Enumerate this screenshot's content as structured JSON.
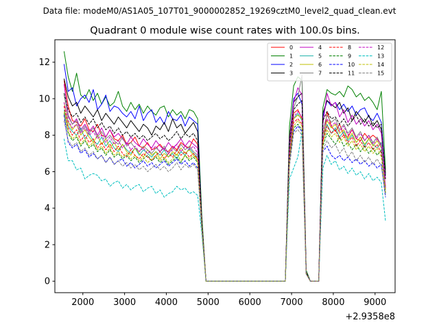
{
  "suptitle": "Data file: modeM0/AS1A05_107T01_9000002852_19269cztM0_level2_quad_clean.evt",
  "chart_data": {
    "type": "line",
    "title": "Quadrant 0 module wise count rates with 100.0s bins.",
    "xlabel": "",
    "ylabel": "",
    "x_offset_label": "+2.9358e8",
    "xlim": [
      1330,
      9480
    ],
    "ylim": [
      -0.63,
      13.23
    ],
    "x_ticks": [
      2000,
      3000,
      4000,
      5000,
      6000,
      7000,
      8000,
      9000
    ],
    "x_tick_labels": [
      "2000",
      "3000",
      "4000",
      "5000",
      "6000",
      "7000",
      "8000",
      "9000"
    ],
    "y_ticks": [
      0,
      2,
      4,
      6,
      8,
      10,
      12
    ],
    "y_tick_labels": [
      "0",
      "2",
      "4",
      "6",
      "8",
      "10",
      "12"
    ],
    "legend": "top-right",
    "legend_columns": 4,
    "segments": [
      {
        "x_start": 1550,
        "x_end": 4850,
        "step": 100
      },
      {
        "x_start": 4950,
        "x_end": 6850,
        "step": 100
      },
      {
        "x_start": 6950,
        "x_end": 7250,
        "step": 100
      },
      {
        "x_start": 7350,
        "x_end": 7650,
        "step": 100
      },
      {
        "x_start": 7750,
        "x_end": 9250,
        "step": 100
      }
    ],
    "series": [
      {
        "name": "0",
        "color": "#ff0000",
        "dash": "solid",
        "seg1": [
          11.0,
          9.6,
          8.8,
          8.7,
          8.5,
          8.9,
          8.3,
          8.2,
          8.6,
          8.0,
          7.9,
          8.3,
          7.8,
          7.7,
          8.0,
          7.5,
          7.6,
          7.9,
          7.4,
          7.3,
          7.6,
          7.2,
          7.3,
          7.5,
          7.2,
          7.1,
          7.4,
          7.2,
          7.6,
          7.4,
          7.3,
          7.8,
          7.5,
          3.3
        ],
        "seg3": [
          7.5,
          9.2,
          9.4,
          8.9
        ],
        "seg4": [
          0.4,
          0.0,
          0.0,
          0.0
        ],
        "seg5": [
          7.5,
          9.3,
          8.5,
          8.2,
          8.6,
          8.0,
          7.9,
          8.3,
          7.8,
          7.7,
          8.1,
          7.8,
          8.0,
          7.8,
          7.5,
          5.2
        ]
      },
      {
        "name": "1",
        "color": "#008000",
        "dash": "solid",
        "seg1": [
          12.6,
          11.2,
          10.4,
          11.4,
          10.2,
          10.0,
          10.5,
          9.9,
          10.3,
          9.7,
          10.1,
          9.6,
          9.8,
          10.4,
          9.6,
          9.3,
          9.8,
          9.4,
          9.7,
          9.2,
          9.6,
          9.3,
          9.1,
          9.5,
          9.6,
          9.0,
          9.4,
          9.1,
          9.3,
          8.9,
          9.4,
          9.3,
          8.9,
          3.6
        ],
        "seg3": [
          8.5,
          10.7,
          11.2,
          11.0
        ],
        "seg4": [
          0.6,
          0.0,
          0.0,
          0.0
        ],
        "seg5": [
          9.5,
          10.5,
          10.3,
          10.2,
          10.4,
          10.1,
          10.7,
          10.5,
          10.1,
          10.3,
          9.9,
          10.1,
          9.8,
          9.4,
          10.4,
          6.1
        ]
      },
      {
        "name": "2",
        "color": "#0000ff",
        "dash": "solid",
        "seg1": [
          11.9,
          10.4,
          10.6,
          9.6,
          10.0,
          10.2,
          9.8,
          10.5,
          9.4,
          9.7,
          10.2,
          9.3,
          9.6,
          9.5,
          9.2,
          9.0,
          9.3,
          8.9,
          9.6,
          8.8,
          9.2,
          9.4,
          8.7,
          9.0,
          8.6,
          9.3,
          8.9,
          8.8,
          9.1,
          8.5,
          9.0,
          8.8,
          8.6,
          3.1
        ],
        "seg3": [
          7.8,
          10.0,
          10.3,
          9.7
        ],
        "seg4": [
          0.5,
          0.0,
          0.0,
          0.0
        ],
        "seg5": [
          9.0,
          9.9,
          9.6,
          9.8,
          9.4,
          9.7,
          9.3,
          9.6,
          9.1,
          9.4,
          9.5,
          9.0,
          8.8,
          9.2,
          8.7,
          5.8
        ]
      },
      {
        "name": "3",
        "color": "#000000",
        "dash": "solid",
        "seg1": [
          11.1,
          10.1,
          9.6,
          9.8,
          9.2,
          9.6,
          9.3,
          9.0,
          9.4,
          8.8,
          9.2,
          8.9,
          8.6,
          9.0,
          8.7,
          8.4,
          8.8,
          8.5,
          8.2,
          8.6,
          8.4,
          8.0,
          8.5,
          8.3,
          8.7,
          8.2,
          8.9,
          8.4,
          8.6,
          8.1,
          8.4,
          8.7,
          8.2,
          3.2
        ],
        "seg3": [
          7.9,
          9.8,
          10.1,
          10.3
        ],
        "seg4": [
          0.5,
          0.0,
          0.0,
          0.0
        ],
        "seg5": [
          9.2,
          9.9,
          9.7,
          9.5,
          9.8,
          9.2,
          9.5,
          8.8,
          9.3,
          9.0,
          8.7,
          9.1,
          8.5,
          8.8,
          8.3,
          5.9
        ]
      },
      {
        "name": "4",
        "color": "#bf00bf",
        "dash": "solid",
        "seg1": [
          10.8,
          9.1,
          8.6,
          8.9,
          8.3,
          8.6,
          8.2,
          8.5,
          8.0,
          8.4,
          7.9,
          8.3,
          7.9,
          8.1,
          7.8,
          7.5,
          7.9,
          7.6,
          7.4,
          7.8,
          7.5,
          7.3,
          7.7,
          7.4,
          7.2,
          7.6,
          7.3,
          7.5,
          7.8,
          7.4,
          7.7,
          7.5,
          7.3,
          3.2
        ],
        "seg3": [
          7.7,
          9.8,
          10.6,
          10.2
        ],
        "seg4": [
          0.5,
          0.0,
          0.0,
          0.0
        ],
        "seg5": [
          8.6,
          10.3,
          9.6,
          9.8,
          9.0,
          9.4,
          8.7,
          9.1,
          8.6,
          8.9,
          8.5,
          8.8,
          8.3,
          8.6,
          8.1,
          5.6
        ]
      },
      {
        "name": "5",
        "color": "#20b2aa",
        "dash": "solid",
        "seg1": [
          9.4,
          8.5,
          8.2,
          8.0,
          8.4,
          7.8,
          8.1,
          7.7,
          7.5,
          7.9,
          7.4,
          7.7,
          7.3,
          7.1,
          7.5,
          7.2,
          7.0,
          7.3,
          6.9,
          7.2,
          7.0,
          6.8,
          7.1,
          6.9,
          7.2,
          6.8,
          7.0,
          6.7,
          7.1,
          6.9,
          7.3,
          7.0,
          6.8,
          3.0
        ],
        "seg3": [
          7.0,
          8.9,
          9.2,
          8.8
        ],
        "seg4": [
          0.4,
          0.0,
          0.0,
          0.0
        ],
        "seg5": [
          7.8,
          8.6,
          8.1,
          8.4,
          7.9,
          8.2,
          7.7,
          8.0,
          7.6,
          7.9,
          7.4,
          7.8,
          7.5,
          7.3,
          7.6,
          5.0
        ]
      },
      {
        "name": "6",
        "color": "#bfbf00",
        "dash": "solid",
        "seg1": [
          9.8,
          8.7,
          8.3,
          8.6,
          8.0,
          8.3,
          7.9,
          7.6,
          8.0,
          7.5,
          7.8,
          7.3,
          7.6,
          7.2,
          7.5,
          7.1,
          6.9,
          7.3,
          7.0,
          6.8,
          7.2,
          6.9,
          7.1,
          6.7,
          7.0,
          6.8,
          7.1,
          6.9,
          7.3,
          7.0,
          7.2,
          6.9,
          6.7,
          3.0
        ],
        "seg3": [
          7.1,
          8.9,
          9.1,
          8.9
        ],
        "seg4": [
          0.4,
          0.0,
          0.0,
          0.0
        ],
        "seg5": [
          8.0,
          8.8,
          8.4,
          8.6,
          8.1,
          8.3,
          7.8,
          8.1,
          7.6,
          7.9,
          7.5,
          7.8,
          7.4,
          7.7,
          7.3,
          5.0
        ]
      },
      {
        "name": "7",
        "color": "#808080",
        "dash": "solid",
        "seg1": [
          10.2,
          9.0,
          8.6,
          8.8,
          8.2,
          8.5,
          8.1,
          8.4,
          7.9,
          8.2,
          7.8,
          8.0,
          7.7,
          7.5,
          7.9,
          7.4,
          7.6,
          7.3,
          7.1,
          7.4,
          7.2,
          7.0,
          7.3,
          7.1,
          7.4,
          7.0,
          7.3,
          7.1,
          7.5,
          7.2,
          7.4,
          7.1,
          6.9,
          3.1
        ],
        "seg3": [
          7.3,
          9.5,
          10.1,
          11.3
        ],
        "seg4": [
          0.5,
          0.0,
          0.0,
          0.0
        ],
        "seg5": [
          8.3,
          9.1,
          8.7,
          8.9,
          8.3,
          8.6,
          8.1,
          8.4,
          7.9,
          8.2,
          7.7,
          8.0,
          7.6,
          7.9,
          7.4,
          5.1
        ]
      },
      {
        "name": "8",
        "color": "#ff0000",
        "dash": "dashed",
        "seg1": [
          9.6,
          8.4,
          8.0,
          8.3,
          7.7,
          8.0,
          7.6,
          7.8,
          7.3,
          7.6,
          7.2,
          7.5,
          7.1,
          7.4,
          7.0,
          6.8,
          7.2,
          6.9,
          6.7,
          7.0,
          6.8,
          6.6,
          6.9,
          7.1,
          6.7,
          7.0,
          6.8,
          7.2,
          6.9,
          7.1,
          6.8,
          7.0,
          6.7,
          3.0
        ],
        "seg3": [
          6.8,
          8.7,
          8.9,
          8.6
        ],
        "seg4": [
          0.4,
          0.0,
          0.0,
          0.0
        ],
        "seg5": [
          7.7,
          8.5,
          8.1,
          8.3,
          7.8,
          8.0,
          7.6,
          7.9,
          7.4,
          7.7,
          7.3,
          7.6,
          7.2,
          7.5,
          7.0,
          4.9
        ]
      },
      {
        "name": "9",
        "color": "#008000",
        "dash": "dashed",
        "seg1": [
          9.2,
          8.1,
          7.7,
          7.9,
          7.4,
          7.7,
          7.3,
          7.5,
          7.1,
          7.3,
          6.9,
          7.2,
          6.8,
          7.0,
          6.7,
          6.9,
          6.6,
          6.8,
          6.5,
          6.7,
          6.9,
          6.6,
          6.8,
          6.5,
          6.7,
          6.4,
          6.6,
          6.8,
          6.5,
          6.9,
          6.6,
          6.8,
          6.5,
          2.9
        ],
        "seg3": [
          6.6,
          8.4,
          8.6,
          8.3
        ],
        "seg4": [
          0.4,
          0.0,
          0.0,
          0.0
        ],
        "seg5": [
          7.4,
          8.1,
          7.8,
          7.5,
          7.9,
          7.4,
          7.6,
          7.2,
          7.5,
          7.1,
          7.4,
          7.0,
          7.3,
          6.9,
          7.2,
          4.8
        ]
      },
      {
        "name": "10",
        "color": "#0000ff",
        "dash": "dashed",
        "seg1": [
          9.1,
          7.6,
          7.3,
          7.5,
          7.0,
          7.2,
          6.8,
          7.0,
          6.7,
          6.9,
          6.5,
          6.8,
          6.4,
          6.6,
          6.7,
          6.3,
          6.5,
          6.2,
          6.4,
          6.6,
          6.3,
          6.5,
          6.2,
          6.4,
          6.6,
          6.3,
          6.5,
          6.7,
          6.4,
          6.6,
          6.3,
          6.5,
          6.2,
          2.8
        ],
        "seg3": [
          6.5,
          8.2,
          8.5,
          8.2
        ],
        "seg4": [
          0.4,
          0.0,
          0.0,
          0.0
        ],
        "seg5": [
          7.1,
          7.4,
          6.9,
          6.7,
          6.9,
          6.6,
          6.8,
          6.5,
          6.7,
          6.4,
          6.6,
          6.3,
          6.5,
          6.2,
          6.4,
          4.6
        ]
      },
      {
        "name": "11",
        "color": "#000000",
        "dash": "dashed",
        "seg1": [
          10.3,
          9.4,
          9.0,
          9.2,
          8.7,
          9.0,
          8.6,
          8.9,
          8.4,
          8.7,
          8.3,
          8.5,
          8.1,
          8.4,
          8.0,
          8.2,
          7.9,
          8.1,
          7.8,
          8.0,
          7.7,
          7.9,
          8.1,
          7.8,
          8.0,
          7.7,
          7.9,
          8.2,
          7.8,
          8.1,
          7.9,
          8.1,
          7.7,
          3.2
        ],
        "seg3": [
          7.5,
          9.4,
          9.7,
          9.9
        ],
        "seg4": [
          0.5,
          0.0,
          0.0,
          0.0
        ],
        "seg5": [
          8.8,
          9.3,
          8.9,
          9.0,
          8.6,
          8.9,
          8.5,
          8.8,
          9.1,
          8.6,
          8.9,
          8.5,
          8.7,
          8.4,
          8.6,
          5.6
        ]
      },
      {
        "name": "12",
        "color": "#bf00bf",
        "dash": "dashed",
        "seg1": [
          9.8,
          8.8,
          8.4,
          8.6,
          8.1,
          8.4,
          8.0,
          8.2,
          7.8,
          8.0,
          7.6,
          7.9,
          7.5,
          7.7,
          7.3,
          7.6,
          7.2,
          7.4,
          7.1,
          7.3,
          7.0,
          7.2,
          7.4,
          7.1,
          7.3,
          7.0,
          7.2,
          7.5,
          7.1,
          7.4,
          7.2,
          7.4,
          7.0,
          3.0
        ],
        "seg3": [
          7.0,
          9.0,
          9.3,
          9.0
        ],
        "seg4": [
          0.4,
          0.0,
          0.0,
          0.0
        ],
        "seg5": [
          8.1,
          8.9,
          8.5,
          8.7,
          8.2,
          8.5,
          8.0,
          8.3,
          7.8,
          8.1,
          7.7,
          8.0,
          7.5,
          7.8,
          7.4,
          5.1
        ]
      },
      {
        "name": "13",
        "color": "#00bfbf",
        "dash": "dashed",
        "seg1": [
          7.8,
          6.6,
          6.6,
          6.1,
          6.2,
          5.6,
          5.8,
          5.9,
          5.8,
          5.5,
          5.6,
          5.2,
          5.4,
          5.5,
          5.1,
          5.3,
          5.0,
          5.2,
          5.3,
          4.9,
          5.1,
          5.2,
          4.8,
          5.0,
          4.6,
          4.8,
          4.9,
          5.2,
          5.0,
          5.1,
          4.8,
          4.9,
          4.7,
          2.6
        ],
        "seg3": [
          5.6,
          6.2,
          6.8,
          8.2
        ],
        "seg4": [
          0.4,
          0.0,
          0.0,
          0.0
        ],
        "seg5": [
          6.2,
          6.9,
          6.4,
          6.6,
          6.1,
          6.3,
          5.9,
          6.2,
          5.8,
          6.0,
          5.6,
          5.9,
          5.5,
          5.7,
          5.4,
          3.3
        ]
      },
      {
        "name": "14",
        "color": "#bfbf00",
        "dash": "dashed",
        "seg1": [
          9.3,
          8.2,
          7.8,
          8.0,
          7.5,
          7.8,
          7.4,
          7.6,
          7.2,
          7.4,
          7.0,
          7.3,
          6.9,
          7.1,
          6.8,
          7.0,
          6.7,
          6.9,
          6.6,
          6.8,
          6.5,
          6.7,
          6.9,
          6.6,
          6.8,
          6.5,
          6.7,
          7.0,
          6.6,
          6.9,
          6.7,
          6.9,
          6.6,
          2.9
        ],
        "seg3": [
          6.7,
          8.5,
          8.8,
          8.5
        ],
        "seg4": [
          0.4,
          0.0,
          0.0,
          0.0
        ],
        "seg5": [
          7.6,
          8.3,
          7.9,
          8.1,
          7.6,
          7.9,
          7.4,
          7.7,
          7.2,
          7.5,
          7.1,
          7.4,
          7.0,
          7.3,
          6.8,
          4.9
        ]
      },
      {
        "name": "15",
        "color": "#808080",
        "dash": "dashed",
        "seg1": [
          8.8,
          7.7,
          7.4,
          7.6,
          7.1,
          7.3,
          6.9,
          7.1,
          6.7,
          6.9,
          6.5,
          6.8,
          6.4,
          6.6,
          6.3,
          6.5,
          6.2,
          6.4,
          6.1,
          6.3,
          6.0,
          6.2,
          6.4,
          6.1,
          6.3,
          6.0,
          6.2,
          6.5,
          6.1,
          6.4,
          6.2,
          6.4,
          6.1,
          2.8
        ],
        "seg3": [
          6.3,
          8.1,
          8.3,
          8.0
        ],
        "seg4": [
          0.4,
          0.0,
          0.0,
          0.0
        ],
        "seg5": [
          7.2,
          7.7,
          7.3,
          7.5,
          7.0,
          7.3,
          6.8,
          7.1,
          6.6,
          6.9,
          6.5,
          6.8,
          6.4,
          6.7,
          6.3,
          4.7
        ]
      }
    ]
  }
}
